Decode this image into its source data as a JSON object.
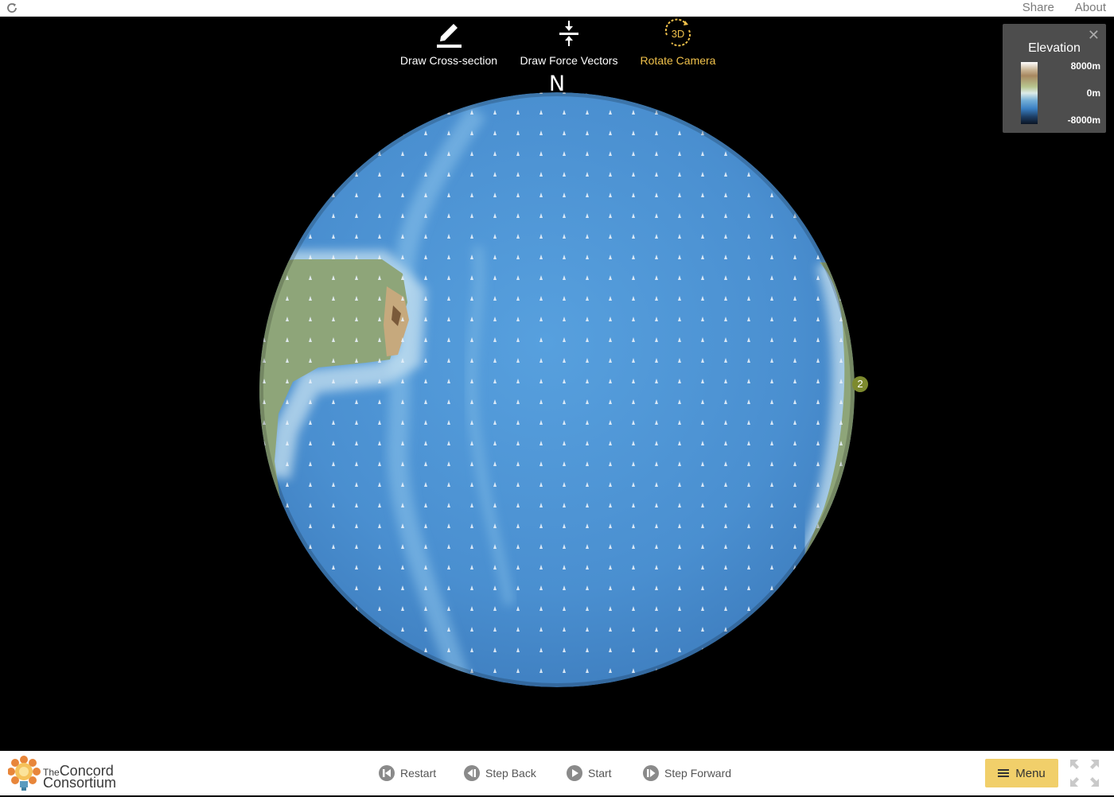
{
  "topbar": {
    "share_label": "Share",
    "about_label": "About"
  },
  "tools": {
    "cross_section_label": "Draw Cross-section",
    "force_vectors_label": "Draw Force Vectors",
    "rotate_camera_label": "Rotate Camera",
    "rotate_camera_icon_text": "3D"
  },
  "compass": {
    "north_label": "N"
  },
  "planet": {
    "plate_marker": "2"
  },
  "legend": {
    "title": "Elevation",
    "max_label": "8000m",
    "mid_label": "0m",
    "min_label": "-8000m"
  },
  "logo": {
    "line1_small": "The",
    "line1": "Concord",
    "line2": "Consortium"
  },
  "controls": {
    "restart_label": "Restart",
    "step_back_label": "Step Back",
    "start_label": "Start",
    "step_forward_label": "Step Forward",
    "menu_label": "Menu"
  },
  "colors": {
    "ocean": "#4a8fd0",
    "land": "#8fa67a",
    "active_tool": "#f0c14b",
    "menu_button": "#f1cf6a"
  }
}
